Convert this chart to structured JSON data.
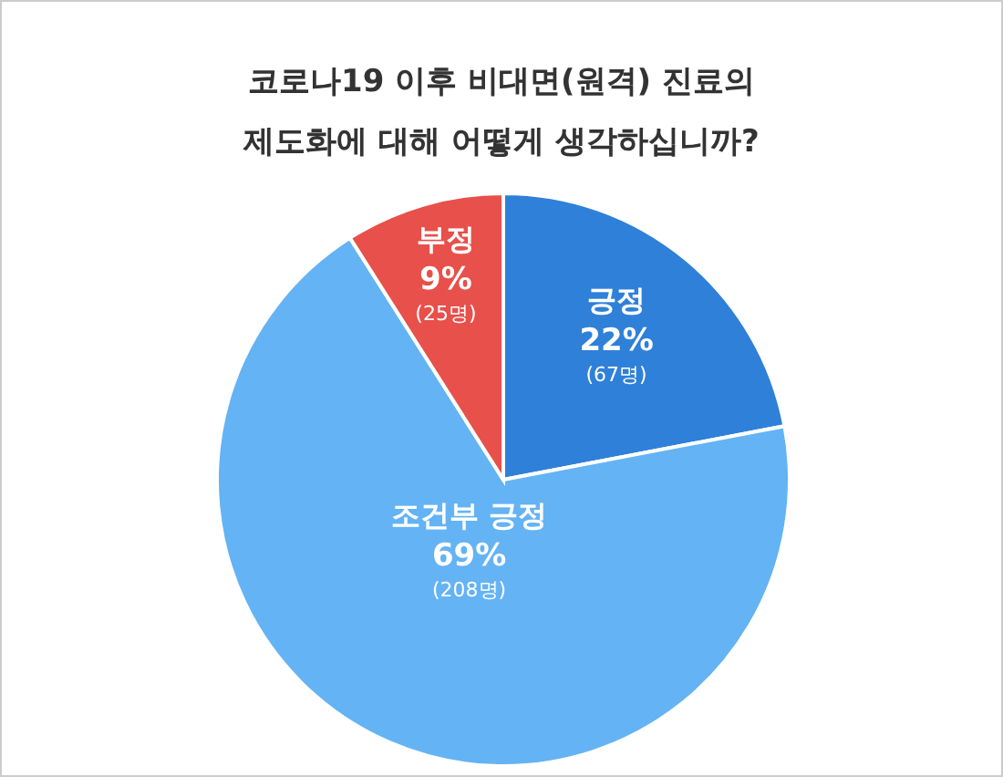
{
  "chart_data": {
    "type": "pie",
    "title": "코로나19 이후 비대면(원격) 진료의\n제도화에 대해 어떻게 생각하십니까?",
    "categories": [
      "긍정",
      "조건부 긍정",
      "부정"
    ],
    "values": [
      22,
      69,
      9
    ],
    "colors": [
      "#2f80d8",
      "#64b3f4",
      "#e8504b"
    ],
    "value_labels": [
      "22%",
      "69%",
      "9%"
    ],
    "annotations": [
      "(67명)",
      "(208명)",
      "(25명)"
    ]
  }
}
